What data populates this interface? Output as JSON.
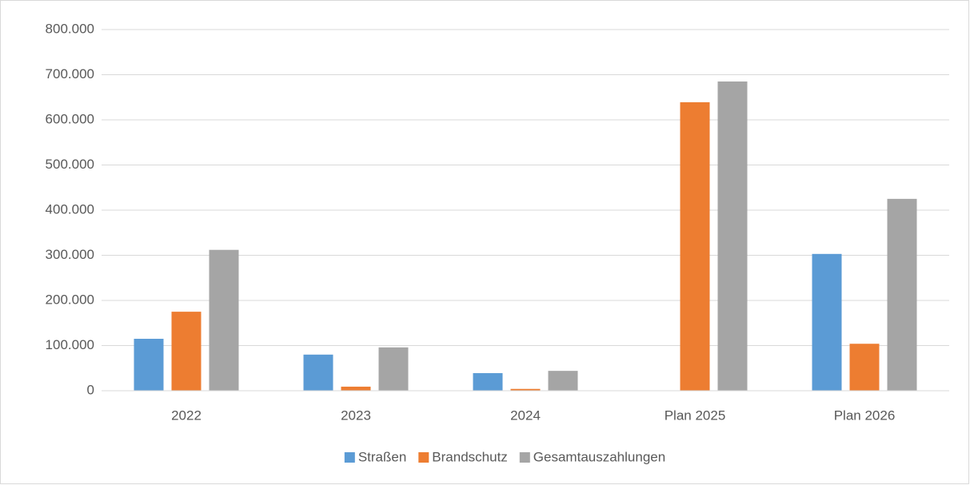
{
  "chart_data": {
    "type": "bar",
    "categories": [
      "2022",
      "2023",
      "2024",
      "Plan 2025",
      "Plan 2026"
    ],
    "series": [
      {
        "name": "Straßen",
        "color": "#5b9bd5",
        "values": [
          115000,
          80000,
          39000,
          0,
          303000
        ]
      },
      {
        "name": "Brandschutz",
        "color": "#ed7d31",
        "values": [
          175000,
          9000,
          4000,
          639000,
          104000
        ]
      },
      {
        "name": "Gesamtauszahlungen",
        "color": "#a5a5a5",
        "values": [
          312000,
          96000,
          44000,
          685000,
          425000
        ]
      }
    ],
    "ylim": [
      0,
      800000
    ],
    "yticks": [
      0,
      {
        "value": 100000,
        "label": "100.000"
      },
      {
        "value": 200000,
        "label": "200.000"
      },
      {
        "value": 300000,
        "label": "300.000"
      },
      {
        "value": 400000,
        "label": "400.000"
      },
      {
        "value": 500000,
        "label": "500.000"
      },
      {
        "value": 600000,
        "label": "600.000"
      },
      {
        "value": 700000,
        "label": "700.000"
      },
      {
        "value": 800000,
        "label": "800.000"
      }
    ],
    "grid": true,
    "legend": "bottom"
  }
}
